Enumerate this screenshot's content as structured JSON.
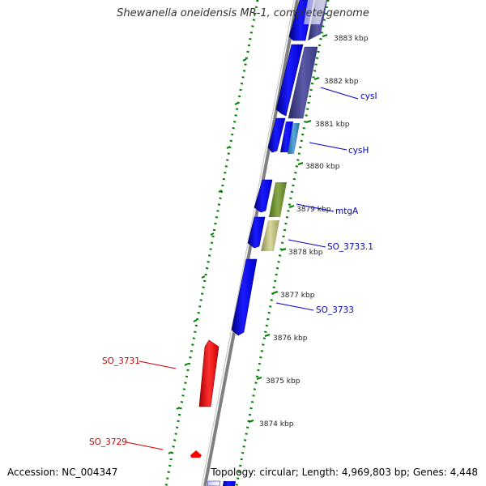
{
  "title": "Shewanella oneidensis MR-1, complete genome",
  "footer": {
    "accession": "Accession: NC_004347",
    "stats": "Topology: circular; Length: 4,969,803 bp; Genes: 4,448"
  },
  "colors": {
    "forward_gene": "#0000ff",
    "reverse_gene": "#ff0000",
    "gene_label_forward": "#0000cc",
    "gene_label_reverse": "#cc0000",
    "gc_plus": "#008000",
    "backbone": "#808080"
  },
  "ticks": [
    {
      "label": "3883 kbp"
    },
    {
      "label": "3882 kbp"
    },
    {
      "label": "3881 kbp"
    },
    {
      "label": "3880 kbp"
    },
    {
      "label": "3879 kbp"
    },
    {
      "label": "3878 kbp"
    },
    {
      "label": "3877 kbp"
    },
    {
      "label": "3876 kbp"
    },
    {
      "label": "3875 kbp"
    },
    {
      "label": "3874 kbp"
    }
  ],
  "gene_labels": [
    {
      "text": "cysI",
      "strand": "forward"
    },
    {
      "text": "cysH",
      "strand": "forward"
    },
    {
      "text": "mtgA",
      "strand": "forward"
    },
    {
      "text": "SO_3733.1",
      "strand": "forward"
    },
    {
      "text": "SO_3733",
      "strand": "forward"
    },
    {
      "text": "SO_3731",
      "strand": "reverse"
    },
    {
      "text": "SO_3729",
      "strand": "reverse"
    }
  ]
}
